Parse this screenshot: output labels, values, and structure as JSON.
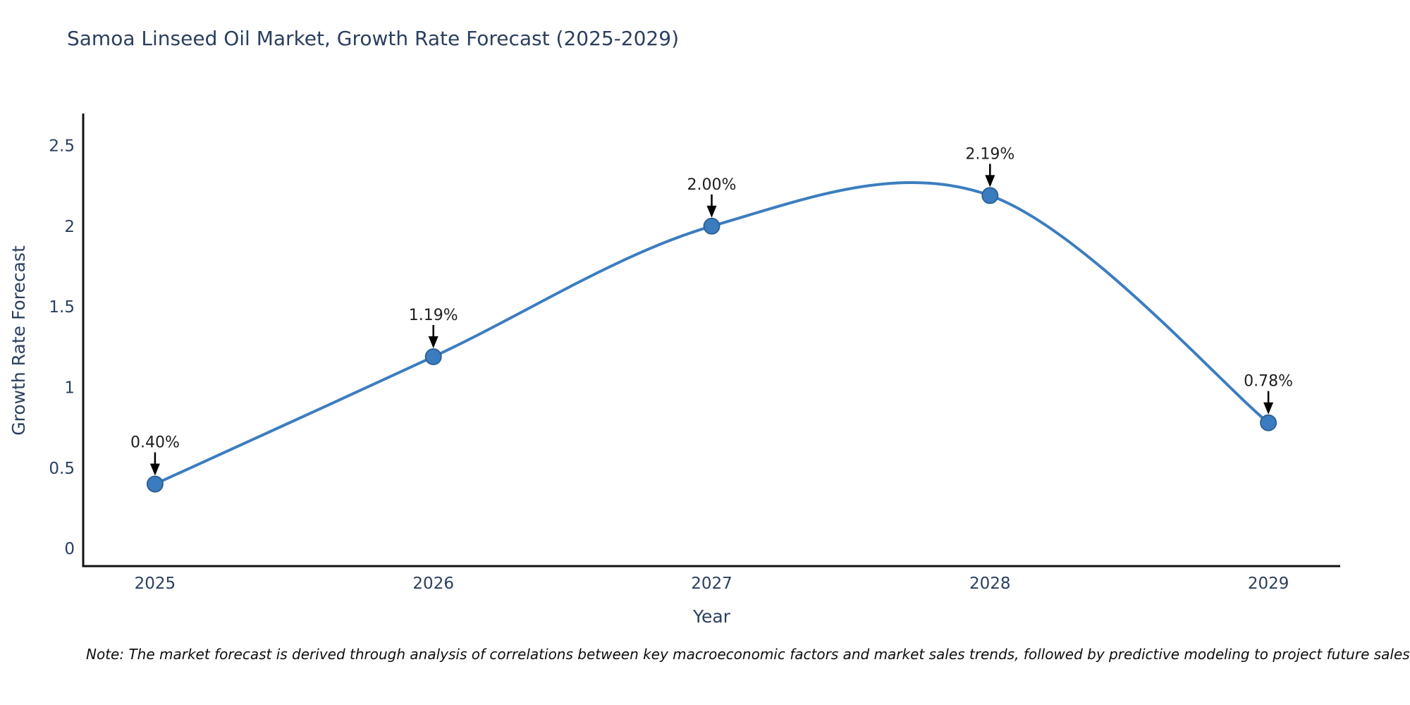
{
  "note": "Note: The market forecast is derived through analysis of correlations between key macroeconomic factors and market sales trends, followed by predictive modeling to project future sales",
  "colors": {
    "title_text": "#2a3f5f",
    "axis_text": "#2a3f5f",
    "axis_line": "#121212",
    "line": "#3c7dbf",
    "marker_fill": "#3a7cbf",
    "marker_stroke": "#2d6396",
    "annotation_text": "#1f1f1f",
    "arrow": "#000000",
    "background": "#ffffff"
  },
  "chart_data": {
    "type": "line",
    "title": "Samoa Linseed Oil Market, Growth Rate Forecast (2025-2029)",
    "xlabel": "Year",
    "ylabel": "Growth Rate Forecast",
    "line_shape": "spline",
    "grid": false,
    "legend": false,
    "x": [
      2025,
      2026,
      2027,
      2028,
      2029
    ],
    "x_tick_labels": [
      "2025",
      "2026",
      "2027",
      "2028",
      "2029"
    ],
    "series": [
      {
        "name": "Growth Rate Forecast (%)",
        "values": [
          0.4,
          1.19,
          2.0,
          2.19,
          0.78
        ]
      }
    ],
    "annotations": [
      "0.40%",
      "1.19%",
      "2.00%",
      "2.19%",
      "0.78%"
    ],
    "y_ticks": [
      {
        "label": "0",
        "value": 0
      },
      {
        "label": "0.5",
        "value": 0.5
      },
      {
        "label": "1",
        "value": 1
      },
      {
        "label": "1.5",
        "value": 1.5
      },
      {
        "label": "2",
        "value": 2
      },
      {
        "label": "2.5",
        "value": 2.5
      }
    ],
    "xlim": [
      2024.742,
      2029.258
    ],
    "ylim": [
      -0.109,
      2.699
    ]
  }
}
